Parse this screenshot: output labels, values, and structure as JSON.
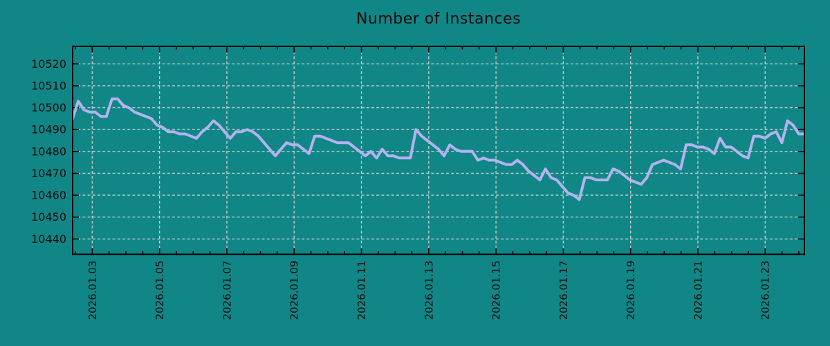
{
  "title": "Number of Instances",
  "colors": {
    "background": "#118687",
    "line": "#b3b3ee",
    "grid": "#c5cdcd",
    "frame": "#000000",
    "text": "#0a0a0a"
  },
  "chart_data": {
    "type": "line",
    "title": "Number of Instances",
    "xlabel": "",
    "ylabel": "",
    "grid": true,
    "legend": false,
    "x_axis": {
      "unit": "days_since_2026-01-01_00:00",
      "range_days": [
        1.4167,
        23.1667
      ],
      "tick_positions_days": [
        2,
        4,
        6,
        8,
        10,
        12,
        14,
        16,
        18,
        20,
        22
      ],
      "tick_labels": [
        "2026.01.03",
        "2026.01.05",
        "2026.01.07",
        "2026.01.09",
        "2026.01.11",
        "2026.01.13",
        "2026.01.15",
        "2026.01.17",
        "2026.01.19",
        "2026.01.21",
        "2026.01.23"
      ],
      "minor_tick_interval_days": 0.5,
      "label_rotation_deg": -90
    },
    "y_axis": {
      "range": [
        10433,
        10528
      ],
      "ticks": [
        10440,
        10450,
        10460,
        10470,
        10480,
        10490,
        10500,
        10510,
        10520
      ],
      "tick_labels": [
        "10440",
        "10450",
        "10460",
        "10470",
        "10480",
        "10490",
        "10500",
        "10510",
        "10520"
      ]
    },
    "series": [
      {
        "name": "instances",
        "t_start_days": 1.4167,
        "t_end_days": 23.1667,
        "sample_interval_hours": 4,
        "values": [
          10495,
          10503,
          10499,
          10498,
          10498,
          10496,
          10496,
          10504,
          10504,
          10501,
          10500,
          10498,
          10497,
          10496,
          10495,
          10492,
          10491,
          10489,
          10489,
          10488,
          10488,
          10487,
          10486,
          10489,
          10491,
          10494,
          10492,
          10489,
          10486,
          10489,
          10489,
          10490,
          10489,
          10487,
          10484,
          10481,
          10478,
          10481,
          10484,
          10483,
          10483,
          10481,
          10479,
          10487,
          10487,
          10486,
          10485,
          10484,
          10484,
          10484,
          10482,
          10480,
          10478,
          10480,
          10477,
          10481,
          10478,
          10478,
          10477,
          10477,
          10477,
          10490,
          10487,
          10485,
          10483,
          10481,
          10478,
          10483,
          10481,
          10480,
          10480,
          10480,
          10476,
          10477,
          10476,
          10476,
          10475,
          10474,
          10474,
          10476,
          10474,
          10471,
          10469,
          10467,
          10472,
          10468,
          10467,
          10464,
          10461,
          10460,
          10458,
          10468,
          10468,
          10467,
          10467,
          10467,
          10472,
          10471,
          10469,
          10467,
          10466,
          10465,
          10468,
          10474,
          10475,
          10476,
          10475,
          10474,
          10472,
          10483,
          10483,
          10482,
          10482,
          10481,
          10479,
          10486,
          10482,
          10482,
          10480,
          10478,
          10477,
          10487,
          10487,
          10486,
          10488,
          10489,
          10484,
          10494,
          10492,
          10488,
          10488
        ]
      }
    ]
  }
}
